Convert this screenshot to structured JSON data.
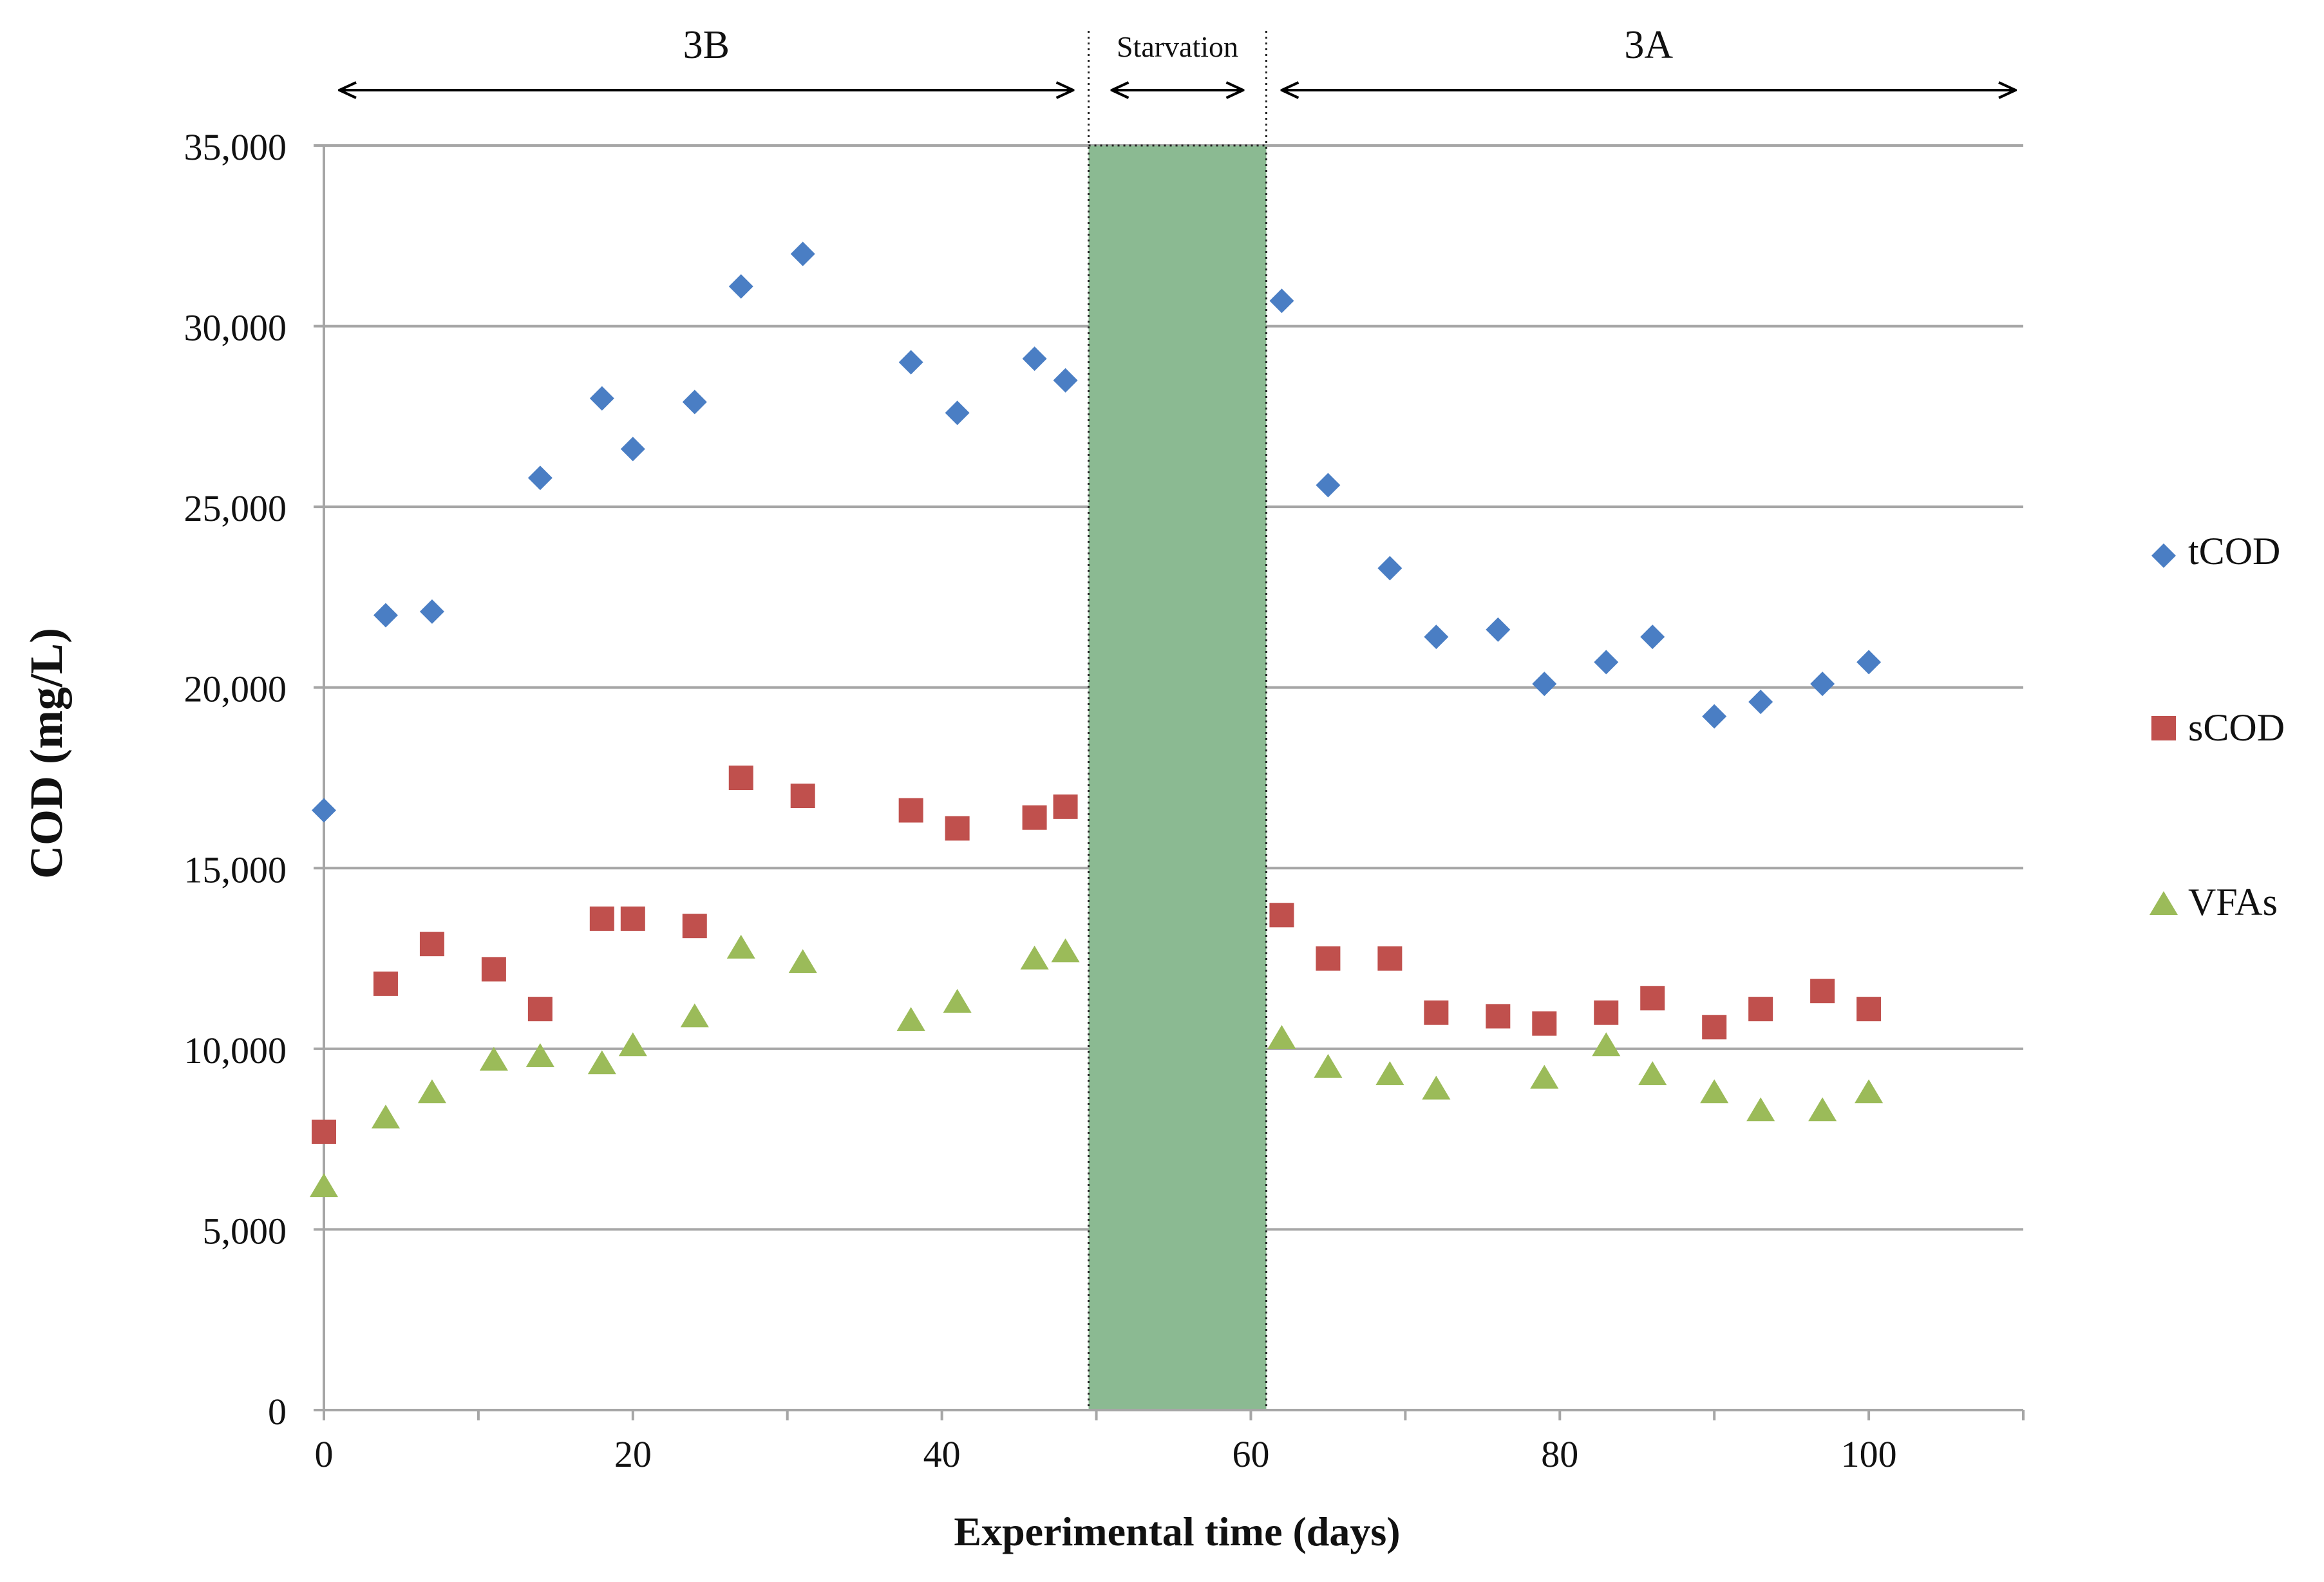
{
  "chart_data": {
    "type": "scatter",
    "title": "",
    "xlabel": "Experimental time (days)",
    "ylabel": "COD (mg/L)",
    "xlim": [
      0,
      110
    ],
    "ylim": [
      0,
      35000
    ],
    "x_ticks": [
      0,
      20,
      40,
      60,
      80,
      100
    ],
    "y_ticks": [
      0,
      5000,
      10000,
      15000,
      20000,
      25000,
      30000,
      35000
    ],
    "y_tick_labels": [
      "0",
      "5,000",
      "10,000",
      "15,000",
      "20,000",
      "25,000",
      "30,000",
      "35,000"
    ],
    "grid": "horizontal",
    "legend_position": "right",
    "starvation_band": {
      "x_start": 49.5,
      "x_end": 61,
      "color": "#8BBA92"
    },
    "phases": [
      {
        "label": "3B",
        "x_start": 1,
        "x_end": 48.5
      },
      {
        "label": "Starvation",
        "x_start": 51,
        "x_end": 59.5
      },
      {
        "label": "3A",
        "x_start": 62,
        "x_end": 109.5
      }
    ],
    "series": [
      {
        "name": "tCOD",
        "marker": "diamond",
        "color": "#4A7EC4",
        "points": [
          [
            0,
            16600
          ],
          [
            4,
            22000
          ],
          [
            7,
            22100
          ],
          [
            14,
            25800
          ],
          [
            18,
            28000
          ],
          [
            20,
            26600
          ],
          [
            24,
            27900
          ],
          [
            27,
            31100
          ],
          [
            31,
            32000
          ],
          [
            38,
            29000
          ],
          [
            41,
            27600
          ],
          [
            46,
            29100
          ],
          [
            48,
            28500
          ],
          [
            62,
            30700
          ],
          [
            65,
            25600
          ],
          [
            69,
            23300
          ],
          [
            72,
            21400
          ],
          [
            76,
            21600
          ],
          [
            79,
            20100
          ],
          [
            83,
            20700
          ],
          [
            86,
            21400
          ],
          [
            90,
            19200
          ],
          [
            93,
            19600
          ],
          [
            97,
            20100
          ],
          [
            100,
            20700
          ]
        ]
      },
      {
        "name": "sCOD",
        "marker": "square",
        "color": "#C0504D",
        "points": [
          [
            0,
            7700
          ],
          [
            4,
            11800
          ],
          [
            7,
            12900
          ],
          [
            11,
            12200
          ],
          [
            14,
            11100
          ],
          [
            18,
            13600
          ],
          [
            20,
            13600
          ],
          [
            24,
            13400
          ],
          [
            27,
            17500
          ],
          [
            31,
            17000
          ],
          [
            38,
            16600
          ],
          [
            41,
            16100
          ],
          [
            46,
            16400
          ],
          [
            48,
            16700
          ],
          [
            62,
            13700
          ],
          [
            65,
            12500
          ],
          [
            69,
            12500
          ],
          [
            72,
            11000
          ],
          [
            76,
            10900
          ],
          [
            79,
            10700
          ],
          [
            83,
            11000
          ],
          [
            86,
            11400
          ],
          [
            90,
            10600
          ],
          [
            93,
            11100
          ],
          [
            97,
            11600
          ],
          [
            100,
            11100
          ]
        ]
      },
      {
        "name": "VFAs",
        "marker": "triangle",
        "color": "#9BBB59",
        "points": [
          [
            0,
            6200
          ],
          [
            4,
            8100
          ],
          [
            7,
            8800
          ],
          [
            11,
            9700
          ],
          [
            14,
            9800
          ],
          [
            18,
            9600
          ],
          [
            20,
            10100
          ],
          [
            24,
            10900
          ],
          [
            27,
            12800
          ],
          [
            31,
            12400
          ],
          [
            38,
            10800
          ],
          [
            41,
            11300
          ],
          [
            46,
            12500
          ],
          [
            48,
            12700
          ],
          [
            62,
            10300
          ],
          [
            65,
            9500
          ],
          [
            69,
            9300
          ],
          [
            72,
            8900
          ],
          [
            79,
            9200
          ],
          [
            83,
            10100
          ],
          [
            86,
            9300
          ],
          [
            90,
            8800
          ],
          [
            93,
            8300
          ],
          [
            97,
            8300
          ],
          [
            100,
            8800
          ]
        ]
      }
    ]
  }
}
